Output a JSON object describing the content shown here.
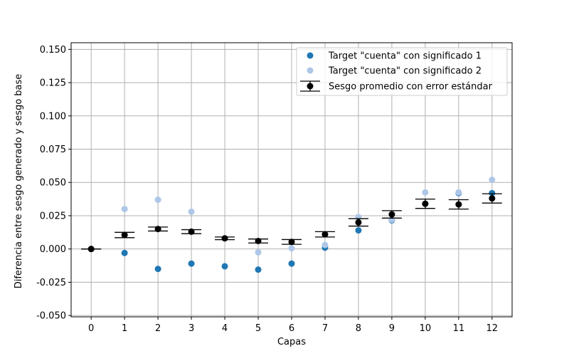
{
  "chart_data": {
    "type": "scatter",
    "title": "",
    "xlabel": "Capas",
    "ylabel": "Diferencia entre sesgo generado y sesgo base",
    "x": [
      0,
      1,
      2,
      3,
      4,
      5,
      6,
      7,
      8,
      9,
      10,
      11,
      12
    ],
    "xticks": [
      "0",
      "1",
      "2",
      "3",
      "4",
      "5",
      "6",
      "7",
      "8",
      "9",
      "10",
      "11",
      "12"
    ],
    "xlim": [
      -0.6,
      12.6
    ],
    "ylim": [
      -0.051,
      0.155
    ],
    "yticks": [
      "-0.050",
      "-0.025",
      "0.000",
      "0.025",
      "0.050",
      "0.075",
      "0.100",
      "0.125",
      "0.150"
    ],
    "grid": true,
    "legend_position": "top-right",
    "series": [
      {
        "name": "Target \"cuenta\" con significado 1",
        "kind": "scatter",
        "color": "#1f77b4",
        "values": [
          0.0,
          -0.003,
          -0.015,
          -0.011,
          -0.013,
          -0.0155,
          -0.011,
          0.001,
          0.014,
          0.0215,
          0.034,
          0.042,
          0.042
        ]
      },
      {
        "name": "Target \"cuenta\" con significado 2",
        "kind": "scatter",
        "color": "#aec7e8",
        "values": [
          0.0,
          0.03,
          0.037,
          0.028,
          0.008,
          -0.0025,
          0.0005,
          0.003,
          0.024,
          0.022,
          0.0425,
          0.0425,
          0.052
        ]
      },
      {
        "name": "Sesgo promedio con error estándar",
        "kind": "errorbar",
        "color": "#000000",
        "values": [
          0.0,
          0.0105,
          0.015,
          0.013,
          0.008,
          0.006,
          0.0053,
          0.011,
          0.02,
          0.026,
          0.034,
          0.0335,
          0.038
        ],
        "errors": [
          0.0,
          0.002,
          0.0015,
          0.0015,
          0.001,
          0.0015,
          0.0018,
          0.002,
          0.0028,
          0.0028,
          0.0035,
          0.0035,
          0.0035
        ]
      }
    ]
  }
}
